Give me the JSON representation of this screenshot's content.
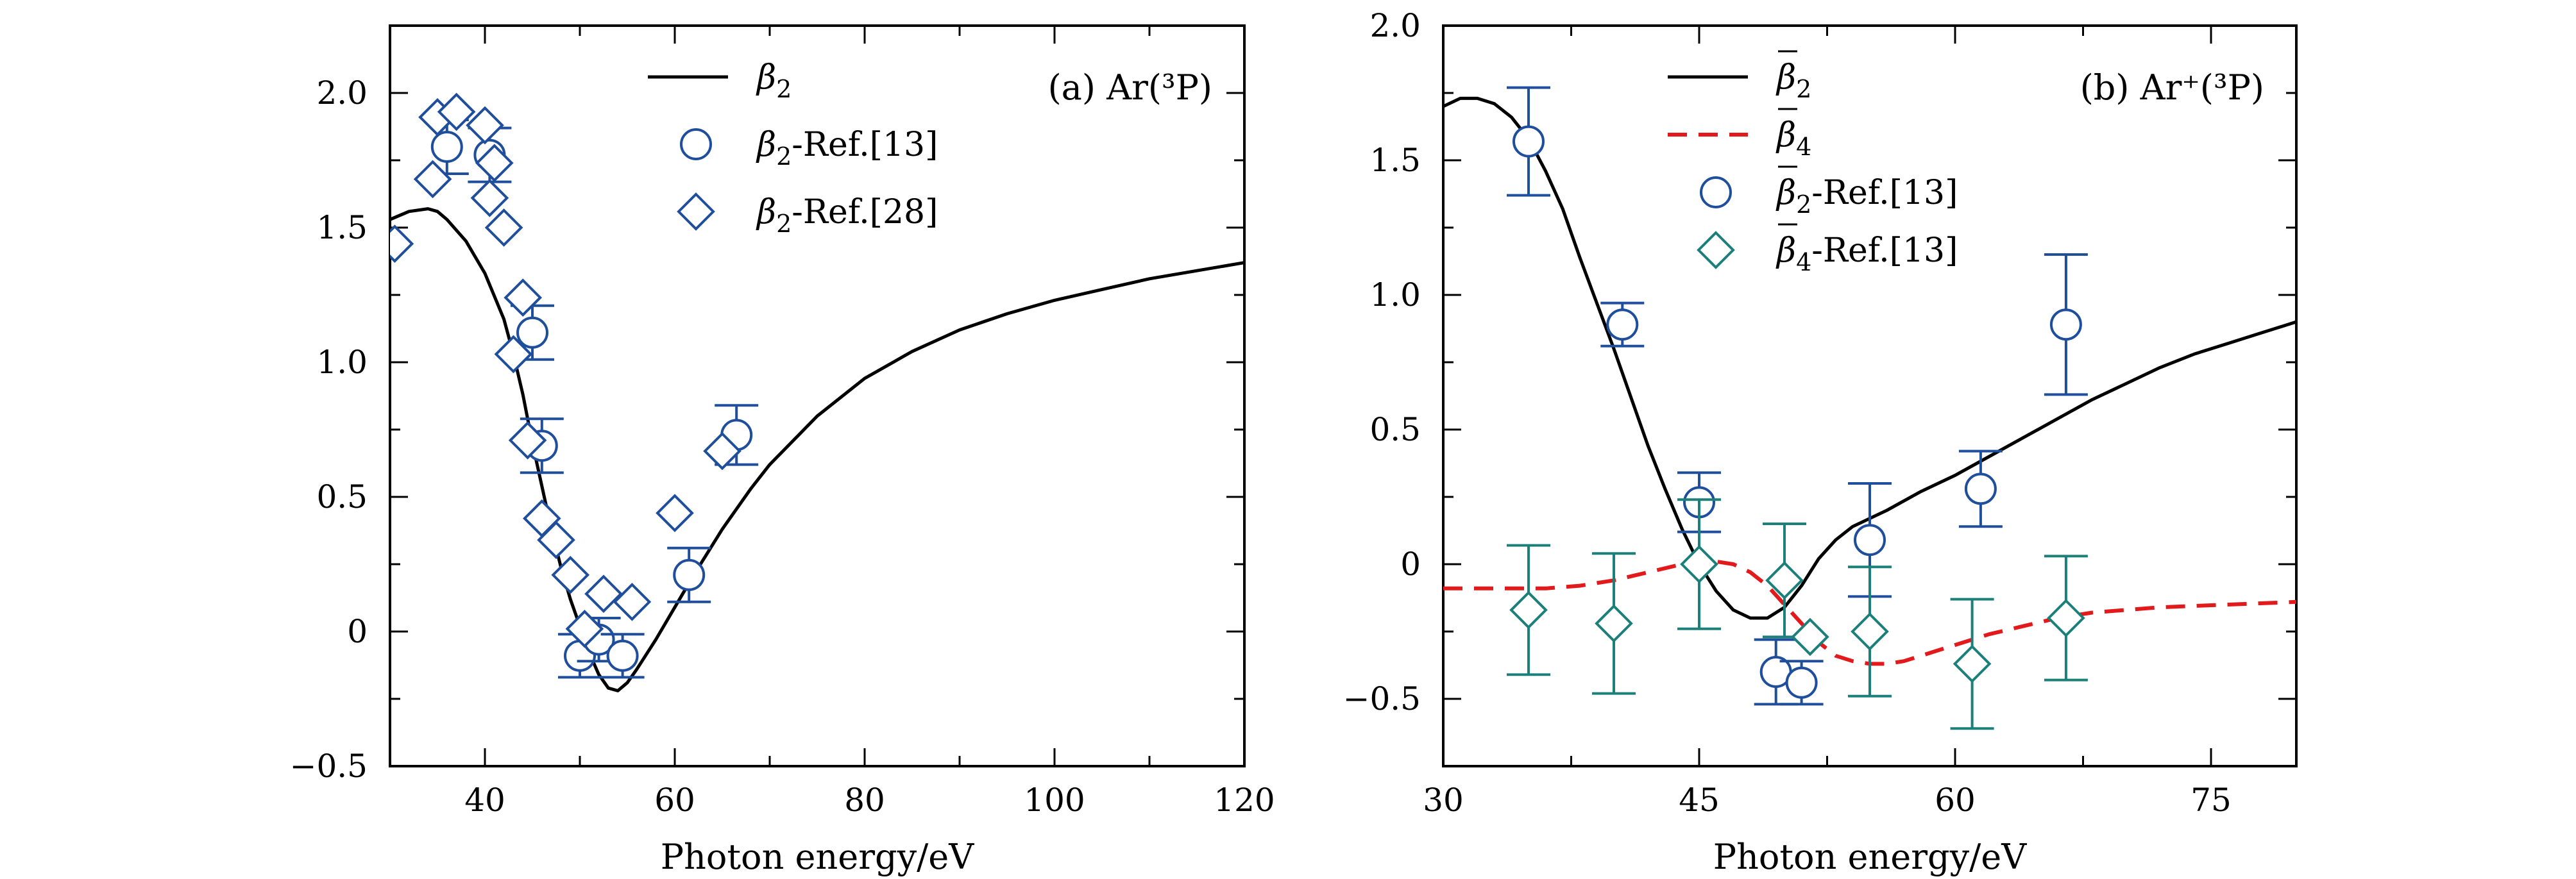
{
  "chart_data": [
    {
      "type": "line",
      "panel_label": "(a) Ar(³P)",
      "xlabel": "Photon energy/eV",
      "ylabel": "",
      "xlim": [
        30,
        120
      ],
      "ylim": [
        -0.5,
        2.25
      ],
      "xticks": [
        40,
        60,
        80,
        100,
        120
      ],
      "xtick_labels": [
        "40",
        "60",
        "80",
        "100",
        "120"
      ],
      "yticks": [
        -0.5,
        0,
        0.5,
        1.0,
        1.5,
        2.0
      ],
      "ytick_labels": [
        "−0.5",
        "0",
        "0.5",
        "1.0",
        "1.5",
        "2.0"
      ],
      "grid": false,
      "legend_position": "top-center",
      "series": [
        {
          "name": "β2",
          "name_base": "β",
          "name_sub": "2",
          "name_suffix": "",
          "kind": "line",
          "color": "#000000",
          "dash": "solid",
          "x": [
            30,
            32,
            34,
            35,
            36,
            38,
            40,
            42,
            43,
            44,
            45,
            46,
            47,
            48,
            49,
            50,
            51,
            52,
            53,
            54,
            55,
            56,
            58,
            60,
            62,
            65,
            68,
            70,
            75,
            80,
            85,
            90,
            95,
            100,
            105,
            110,
            115,
            120
          ],
          "y": [
            1.53,
            1.56,
            1.57,
            1.56,
            1.53,
            1.45,
            1.33,
            1.16,
            1.03,
            0.88,
            0.7,
            0.54,
            0.38,
            0.24,
            0.12,
            0.02,
            -0.08,
            -0.16,
            -0.21,
            -0.22,
            -0.19,
            -0.14,
            -0.03,
            0.09,
            0.21,
            0.38,
            0.53,
            0.62,
            0.8,
            0.94,
            1.04,
            1.12,
            1.18,
            1.23,
            1.27,
            1.31,
            1.34,
            1.37
          ]
        },
        {
          "name": "β2-Ref.[13]",
          "name_base": "β",
          "name_sub": "2",
          "name_suffix": "-Ref.[13]",
          "kind": "circle",
          "color": "#1f4e9c",
          "x": [
            36,
            40.5,
            45,
            46,
            50,
            52,
            54.5,
            61.5,
            66.5
          ],
          "y": [
            1.8,
            1.77,
            1.11,
            0.69,
            -0.09,
            -0.03,
            -0.09,
            0.21,
            0.73
          ],
          "err": [
            0.1,
            0.1,
            0.1,
            0.1,
            0.08,
            0.08,
            0.08,
            0.1,
            0.11
          ]
        },
        {
          "name": "β2-Ref.[28]",
          "name_base": "β",
          "name_sub": "2",
          "name_suffix": "-Ref.[28]",
          "kind": "diamond",
          "color": "#1f4e9c",
          "x": [
            30.5,
            34.5,
            35,
            37,
            40,
            40.5,
            41,
            42,
            43,
            44,
            44.5,
            46,
            47.5,
            49,
            50.5,
            52.5,
            55.5,
            60,
            65
          ],
          "y": [
            1.44,
            1.68,
            1.91,
            1.93,
            1.88,
            1.61,
            1.74,
            1.5,
            1.03,
            1.24,
            0.71,
            0.42,
            0.34,
            0.21,
            0.01,
            0.14,
            0.11,
            0.44,
            0.67
          ]
        }
      ]
    },
    {
      "type": "line",
      "panel_label": "(b) Ar⁺(³P)",
      "xlabel": "Photon energy/eV",
      "ylabel": "",
      "xlim": [
        30,
        80
      ],
      "ylim": [
        -0.75,
        2.0
      ],
      "xticks": [
        30,
        45,
        60,
        75
      ],
      "xtick_labels": [
        "30",
        "45",
        "60",
        "75"
      ],
      "yticks": [
        -0.5,
        0,
        0.5,
        1.0,
        1.5,
        2.0
      ],
      "ytick_labels": [
        "−0.5",
        "0",
        "0.5",
        "1.0",
        "1.5",
        "2.0"
      ],
      "grid": false,
      "legend_position": "top-center",
      "series": [
        {
          "name": "β̄2",
          "name_base": "β",
          "name_sub": "2",
          "name_suffix": "",
          "overline": true,
          "kind": "line",
          "color": "#000000",
          "dash": "solid",
          "x": [
            30,
            31,
            32,
            33,
            34,
            35,
            36,
            37,
            38,
            39,
            40,
            41,
            42,
            43,
            44,
            45,
            46,
            47,
            48,
            49,
            50,
            51,
            52,
            53,
            54,
            55,
            56,
            58,
            60,
            62,
            64,
            66,
            68,
            70,
            72,
            74,
            76,
            78,
            80
          ],
          "y": [
            1.7,
            1.73,
            1.73,
            1.71,
            1.66,
            1.58,
            1.46,
            1.32,
            1.14,
            0.97,
            0.8,
            0.62,
            0.44,
            0.28,
            0.13,
            0.0,
            -0.1,
            -0.17,
            -0.2,
            -0.2,
            -0.16,
            -0.08,
            0.02,
            0.09,
            0.14,
            0.17,
            0.2,
            0.27,
            0.33,
            0.4,
            0.47,
            0.54,
            0.61,
            0.67,
            0.73,
            0.78,
            0.82,
            0.86,
            0.9
          ]
        },
        {
          "name": "β̄4",
          "name_base": "β",
          "name_sub": "4",
          "name_suffix": "",
          "overline": true,
          "kind": "line",
          "color": "#e31a1c",
          "dash": "dashed",
          "x": [
            30,
            32,
            34,
            36,
            38,
            40,
            42,
            44,
            45,
            46,
            47,
            48,
            49,
            50,
            51,
            52,
            53,
            54,
            55,
            56,
            57,
            58,
            60,
            62,
            64,
            66,
            68,
            70,
            72,
            74,
            76,
            78,
            80
          ],
          "y": [
            -0.09,
            -0.09,
            -0.09,
            -0.09,
            -0.08,
            -0.06,
            -0.03,
            0.0,
            0.01,
            0.01,
            0.0,
            -0.03,
            -0.08,
            -0.15,
            -0.22,
            -0.29,
            -0.34,
            -0.36,
            -0.37,
            -0.37,
            -0.36,
            -0.34,
            -0.3,
            -0.26,
            -0.23,
            -0.2,
            -0.18,
            -0.17,
            -0.16,
            -0.155,
            -0.15,
            -0.145,
            -0.14
          ]
        },
        {
          "name": "β̄2-Ref.[13]",
          "name_base": "β",
          "name_sub": "2",
          "name_suffix": "-Ref.[13]",
          "overline": true,
          "kind": "circle",
          "color": "#1f4e9c",
          "x": [
            35,
            40.5,
            45,
            49.5,
            51,
            55,
            61.5,
            66.5
          ],
          "y": [
            1.57,
            0.89,
            0.23,
            -0.4,
            -0.44,
            0.09,
            0.28,
            0.89
          ],
          "err": [
            0.2,
            0.08,
            0.11,
            0.12,
            0.08,
            0.21,
            0.14,
            0.26
          ]
        },
        {
          "name": "β̄4-Ref.[13]",
          "name_base": "β",
          "name_sub": "4",
          "name_suffix": "-Ref.[13]",
          "overline": true,
          "kind": "diamond",
          "color": "#1b7f7a",
          "x": [
            35,
            40,
            45,
            50,
            51.5,
            55,
            61,
            66.5
          ],
          "y": [
            -0.17,
            -0.22,
            0.0,
            -0.06,
            -0.27,
            -0.25,
            -0.37,
            -0.2
          ],
          "err": [
            0.24,
            0.26,
            0.24,
            0.21,
            0.0,
            0.24,
            0.24,
            0.23
          ]
        }
      ]
    }
  ]
}
